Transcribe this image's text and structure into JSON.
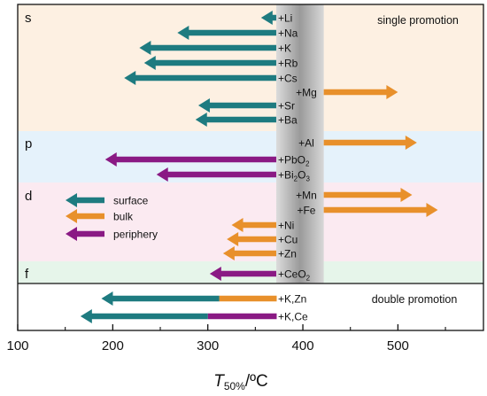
{
  "chart_data": {
    "type": "bar",
    "xlabel_main": "T",
    "xlabel_sub": "50%",
    "xlabel_unit": "/ºC",
    "xlim": [
      100,
      590
    ],
    "xticks": [
      100,
      200,
      300,
      400,
      500
    ],
    "x_tick_labels": [
      "100",
      "200",
      "300",
      "400",
      "500"
    ],
    "reference_band": [
      372,
      422
    ],
    "reference_value": 372,
    "colors": {
      "surface": "#1e7b80",
      "bulk": "#e8902b",
      "periphery": "#8a1a84"
    },
    "sections": [
      {
        "key": "s",
        "label": "s",
        "note": "single promotion",
        "color": "#fdf0e2"
      },
      {
        "key": "p",
        "label": "p",
        "note": "",
        "color": "#e5f2fb"
      },
      {
        "key": "d",
        "label": "d",
        "note": "",
        "color": "#fbeaf1"
      },
      {
        "key": "f",
        "label": "f",
        "note": "",
        "color": "#e6f5ea"
      },
      {
        "key": "double",
        "label": "",
        "note": "double promotion",
        "color": "#ffffff"
      }
    ],
    "legend": [
      {
        "name": "surface",
        "color": "#1e7b80"
      },
      {
        "name": "bulk",
        "color": "#e8902b"
      },
      {
        "name": "periphery",
        "color": "#8a1a84"
      }
    ],
    "promoters": [
      {
        "label": "+Li",
        "section": "s",
        "segments": [
          {
            "from": 372,
            "to": 356,
            "color": "#1e7b80"
          }
        ]
      },
      {
        "label": "+Na",
        "section": "s",
        "segments": [
          {
            "from": 372,
            "to": 268,
            "color": "#1e7b80"
          }
        ]
      },
      {
        "label": "+K",
        "section": "s",
        "segments": [
          {
            "from": 372,
            "to": 228,
            "color": "#1e7b80"
          }
        ]
      },
      {
        "label": "+Rb",
        "section": "s",
        "segments": [
          {
            "from": 372,
            "to": 233,
            "color": "#1e7b80"
          }
        ]
      },
      {
        "label": "+Cs",
        "section": "s",
        "segments": [
          {
            "from": 372,
            "to": 212,
            "color": "#1e7b80"
          }
        ]
      },
      {
        "label": "+Mg",
        "section": "s",
        "segments": [
          {
            "from": 422,
            "to": 500,
            "color": "#e8902b"
          }
        ]
      },
      {
        "label": "+Sr",
        "section": "s",
        "segments": [
          {
            "from": 372,
            "to": 290,
            "color": "#1e7b80"
          }
        ]
      },
      {
        "label": "+Ba",
        "section": "s",
        "segments": [
          {
            "from": 372,
            "to": 287,
            "color": "#1e7b80"
          }
        ]
      },
      {
        "label": "+Al",
        "section": "p",
        "segments": [
          {
            "from": 422,
            "to": 520,
            "color": "#e8902b"
          }
        ]
      },
      {
        "label": "+PbO",
        "sub": "2",
        "section": "p",
        "segments": [
          {
            "from": 372,
            "to": 192,
            "color": "#8a1a84"
          }
        ]
      },
      {
        "label": "+Bi",
        "sub": "2",
        "label2": "O",
        "sub2": "3",
        "section": "p",
        "segments": [
          {
            "from": 372,
            "to": 246,
            "color": "#8a1a84"
          }
        ]
      },
      {
        "label": "+Mn",
        "section": "d",
        "segments": [
          {
            "from": 422,
            "to": 515,
            "color": "#e8902b"
          }
        ]
      },
      {
        "label": "+Fe",
        "section": "d",
        "segments": [
          {
            "from": 422,
            "to": 542,
            "color": "#e8902b"
          }
        ]
      },
      {
        "label": "+Ni",
        "section": "d",
        "segments": [
          {
            "from": 372,
            "to": 325,
            "color": "#e8902b"
          }
        ]
      },
      {
        "label": "+Cu",
        "section": "d",
        "segments": [
          {
            "from": 372,
            "to": 320,
            "color": "#e8902b"
          }
        ]
      },
      {
        "label": "+Zn",
        "section": "d",
        "segments": [
          {
            "from": 372,
            "to": 316,
            "color": "#e8902b"
          }
        ]
      },
      {
        "label": "+CeO",
        "sub": "2",
        "section": "f",
        "segments": [
          {
            "from": 372,
            "to": 302,
            "color": "#8a1a84"
          }
        ]
      },
      {
        "label": "+K,Zn",
        "section": "double",
        "segments": [
          {
            "from": 372,
            "to": 312,
            "color": "#e8902b"
          },
          {
            "from": 312,
            "to": 188,
            "color": "#1e7b80"
          }
        ]
      },
      {
        "label": "+K,Ce",
        "section": "double",
        "segments": [
          {
            "from": 372,
            "to": 300,
            "color": "#8a1a84"
          },
          {
            "from": 300,
            "to": 166,
            "color": "#1e7b80"
          }
        ]
      }
    ]
  }
}
